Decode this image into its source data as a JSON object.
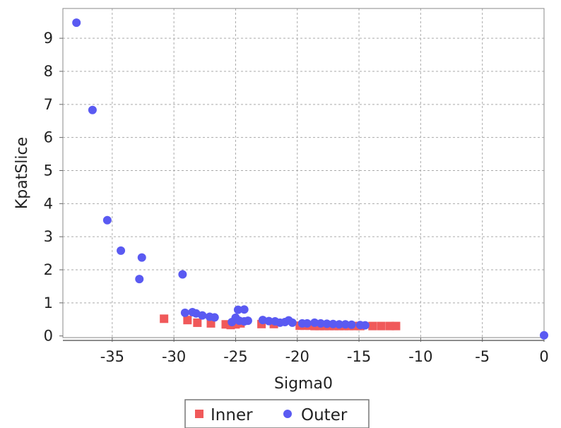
{
  "chart_data": {
    "type": "scatter",
    "xlabel": "Sigma0",
    "ylabel": "KpatSlice",
    "xlim": [
      -39.0,
      0
    ],
    "ylim": [
      -0.05,
      9.9
    ],
    "xticks": [
      -35,
      -30,
      -25,
      -20,
      -15,
      -10,
      -5,
      0
    ],
    "yticks": [
      0,
      1,
      2,
      3,
      4,
      5,
      6,
      7,
      8,
      9
    ],
    "grid": true,
    "legend_position": "bottom-center",
    "series": [
      {
        "name": "Inner",
        "marker": "square",
        "color": "#f0595a",
        "points": [
          [
            -30.8,
            0.52
          ],
          [
            -28.9,
            0.48
          ],
          [
            -28.1,
            0.4
          ],
          [
            -27.0,
            0.38
          ],
          [
            -25.8,
            0.35
          ],
          [
            -25.4,
            0.33
          ],
          [
            -25.0,
            0.35
          ],
          [
            -24.6,
            0.38
          ],
          [
            -22.9,
            0.36
          ],
          [
            -21.9,
            0.36
          ],
          [
            -19.8,
            0.31
          ],
          [
            -19.4,
            0.31
          ],
          [
            -19.0,
            0.31
          ],
          [
            -18.6,
            0.3
          ],
          [
            -18.2,
            0.3
          ],
          [
            -17.8,
            0.3
          ],
          [
            -17.4,
            0.3
          ],
          [
            -17.0,
            0.3
          ],
          [
            -16.6,
            0.3
          ],
          [
            -16.2,
            0.3
          ],
          [
            -15.8,
            0.3
          ],
          [
            -15.4,
            0.3
          ],
          [
            -14.9,
            0.3
          ],
          [
            -13.9,
            0.3
          ],
          [
            -13.2,
            0.3
          ],
          [
            -12.5,
            0.3
          ],
          [
            -12.0,
            0.3
          ]
        ]
      },
      {
        "name": "Outer",
        "marker": "circle",
        "color": "#5a5af2",
        "points": [
          [
            -37.9,
            9.47
          ],
          [
            -36.6,
            6.83
          ],
          [
            -35.4,
            3.5
          ],
          [
            -34.3,
            2.58
          ],
          [
            -32.6,
            2.37
          ],
          [
            -32.8,
            1.72
          ],
          [
            -29.3,
            1.86
          ],
          [
            -29.1,
            0.7
          ],
          [
            -28.5,
            0.72
          ],
          [
            -28.2,
            0.68
          ],
          [
            -27.7,
            0.62
          ],
          [
            -27.1,
            0.58
          ],
          [
            -26.7,
            0.56
          ],
          [
            -24.8,
            0.79
          ],
          [
            -24.3,
            0.8
          ],
          [
            -25.3,
            0.42
          ],
          [
            -25.0,
            0.55
          ],
          [
            -24.7,
            0.46
          ],
          [
            -24.3,
            0.44
          ],
          [
            -24.0,
            0.46
          ],
          [
            -22.8,
            0.48
          ],
          [
            -22.3,
            0.45
          ],
          [
            -21.8,
            0.44
          ],
          [
            -21.4,
            0.4
          ],
          [
            -21.0,
            0.42
          ],
          [
            -20.7,
            0.47
          ],
          [
            -20.4,
            0.4
          ],
          [
            -19.6,
            0.38
          ],
          [
            -19.2,
            0.38
          ],
          [
            -18.6,
            0.4
          ],
          [
            -18.1,
            0.38
          ],
          [
            -17.6,
            0.37
          ],
          [
            -17.1,
            0.36
          ],
          [
            -16.6,
            0.35
          ],
          [
            -16.1,
            0.35
          ],
          [
            -15.6,
            0.34
          ],
          [
            -14.9,
            0.33
          ],
          [
            -14.5,
            0.32
          ],
          [
            0.0,
            0.02
          ]
        ]
      }
    ]
  }
}
